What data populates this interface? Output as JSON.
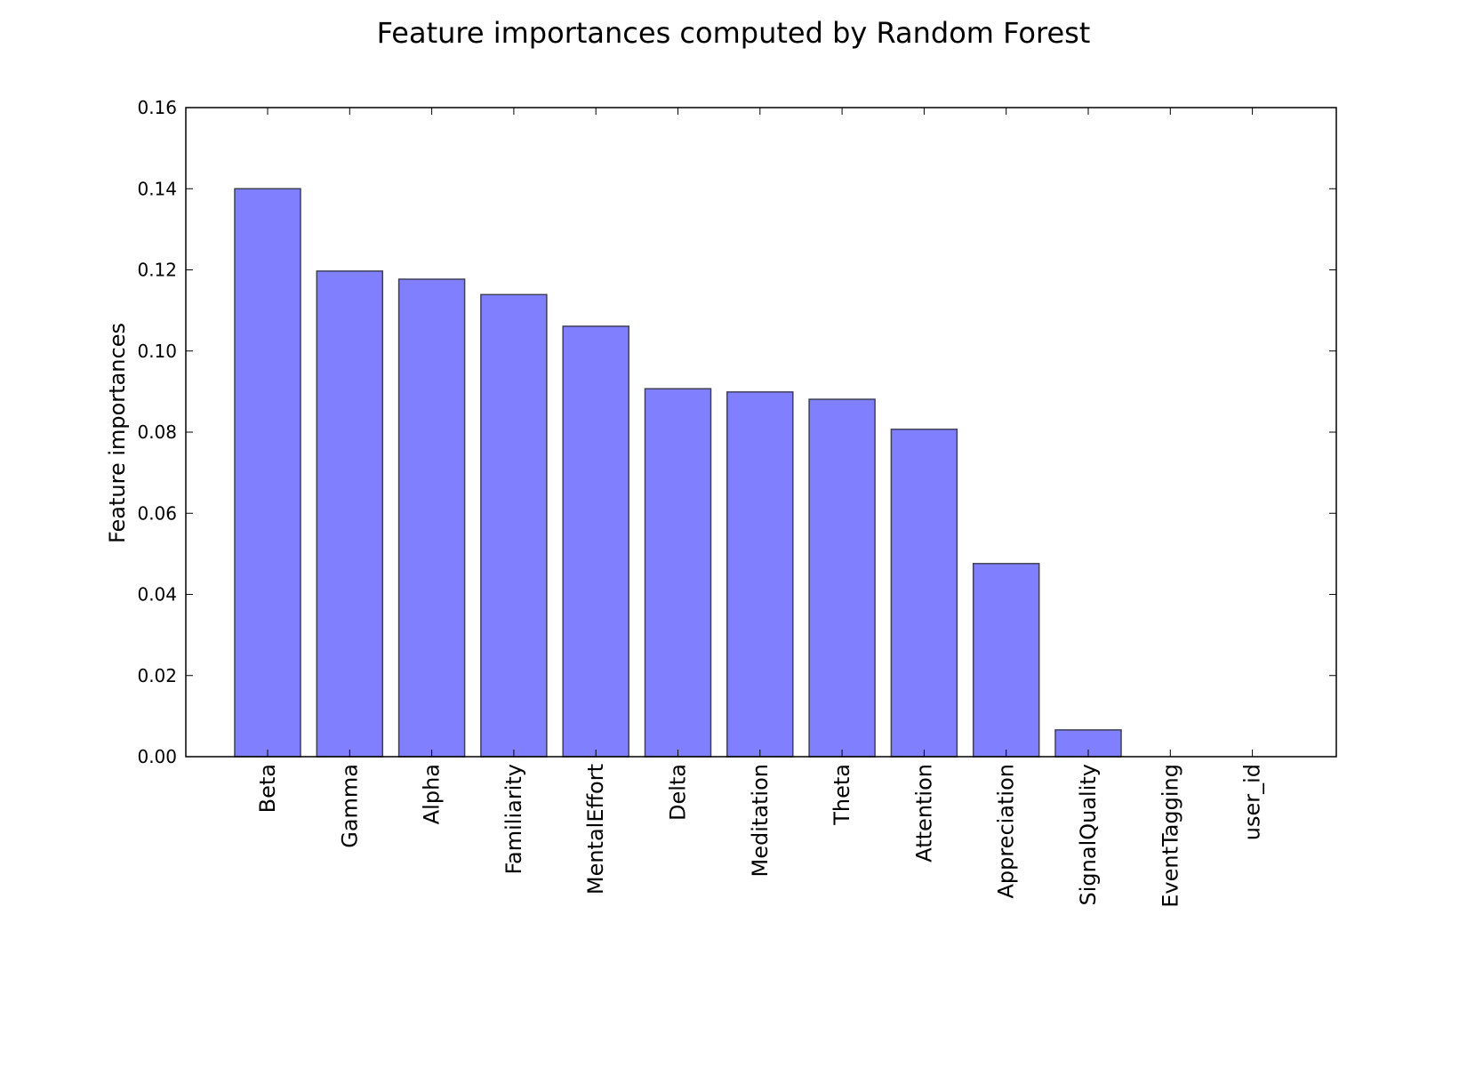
{
  "chart_data": {
    "type": "bar",
    "title": "Feature importances computed by Random Forest",
    "xlabel": "",
    "ylabel": "Feature importances",
    "ylim": [
      0,
      0.16
    ],
    "yticks": [
      "0.00",
      "0.02",
      "0.04",
      "0.06",
      "0.08",
      "0.10",
      "0.12",
      "0.14",
      "0.16"
    ],
    "categories": [
      "Beta",
      "Gamma",
      "Alpha",
      "Familiarity",
      "MentalEffort",
      "Delta",
      "Meditation",
      "Theta",
      "Attention",
      "Appreciation",
      "SignalQuality",
      "EventTagging",
      "user_id"
    ],
    "values": [
      0.14,
      0.1197,
      0.1177,
      0.1139,
      0.1061,
      0.0907,
      0.0899,
      0.0881,
      0.0807,
      0.0476,
      0.0066,
      0.0,
      0.0
    ],
    "bar_color": "#8080ff",
    "bar_edge_color": "#3f3f59",
    "grid": false,
    "legend": "none"
  }
}
